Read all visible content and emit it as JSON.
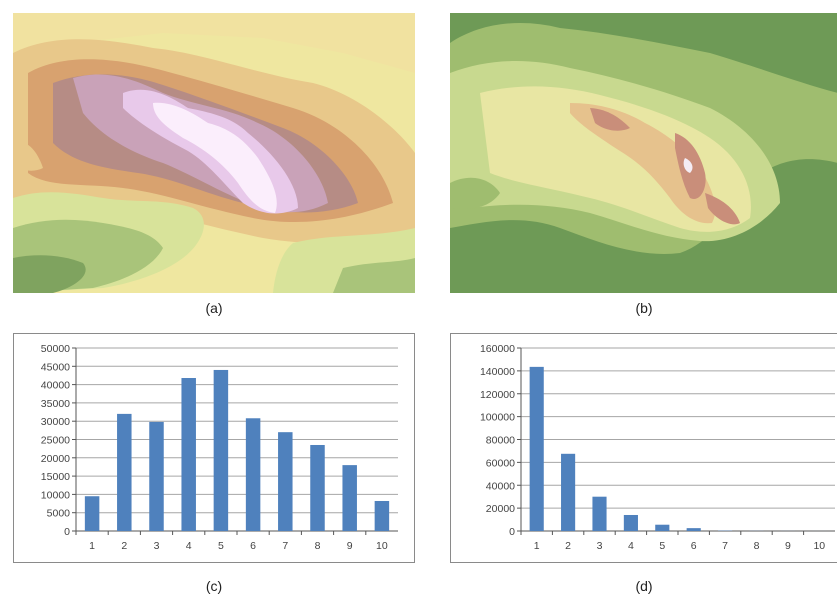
{
  "panels": {
    "a": {
      "caption": "(a)"
    },
    "b": {
      "caption": "(b)"
    },
    "c": {
      "caption": "(c)"
    },
    "d": {
      "caption": "(d)"
    }
  },
  "colors": {
    "bar": "#4f81bd",
    "grid": "#a6a6a6",
    "map_a_ramp": [
      "#7fa35f",
      "#a9c47a",
      "#d8e39a",
      "#efe7a0",
      "#e9c98b",
      "#d9a36f",
      "#b88d86",
      "#c9a2b8",
      "#e7c9ea",
      "#fbeefc"
    ],
    "map_b_ramp": [
      "#6e9a56",
      "#9fbd6f",
      "#c8d98f",
      "#e8e6a3",
      "#e6c28d",
      "#c98e7a",
      "#f4ecf4"
    ]
  },
  "chart_data": [
    {
      "type": "bar",
      "categories": [
        "1",
        "2",
        "3",
        "4",
        "5",
        "6",
        "7",
        "8",
        "9",
        "10"
      ],
      "values": [
        9500,
        32000,
        29800,
        41800,
        44000,
        30800,
        27000,
        23500,
        18000,
        8200
      ],
      "ylim": [
        0,
        50000
      ],
      "yticks": [
        "0",
        "5000",
        "10000",
        "15000",
        "20000",
        "25000",
        "30000",
        "35000",
        "40000",
        "45000",
        "50000"
      ],
      "grid": true,
      "legend": "none"
    },
    {
      "type": "bar",
      "categories": [
        "1",
        "2",
        "3",
        "4",
        "5",
        "6",
        "7",
        "8",
        "9",
        "10"
      ],
      "values": [
        143500,
        67500,
        30000,
        14000,
        5500,
        2500,
        300,
        100,
        50,
        20
      ],
      "ylim": [
        0,
        160000
      ],
      "yticks": [
        "0",
        "20000",
        "40000",
        "60000",
        "80000",
        "100000",
        "120000",
        "140000",
        "160000"
      ],
      "grid": true,
      "legend": "none"
    }
  ]
}
